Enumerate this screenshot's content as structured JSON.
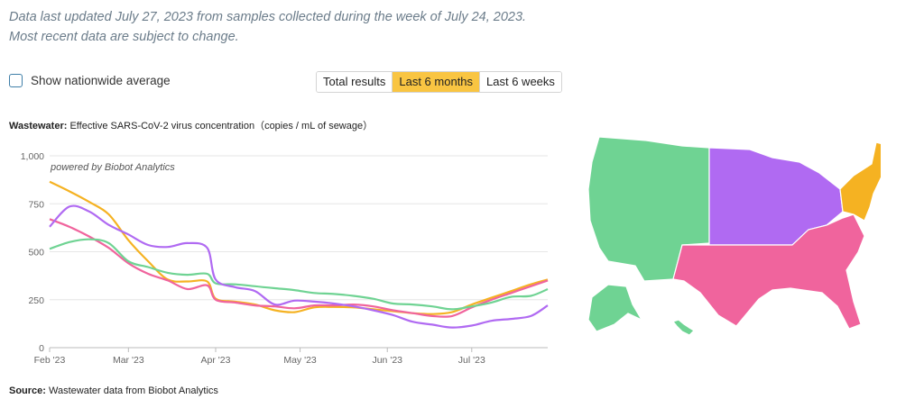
{
  "note": {
    "line1": "Data last updated July 27, 2023 from samples collected during the week of July 24, 2023.",
    "line2": "Most recent data are subject to change."
  },
  "toggle": {
    "label": "Show nationwide average",
    "checked": false
  },
  "range_tabs": [
    {
      "label": "Total results",
      "active": false
    },
    {
      "label": "Last 6 months",
      "active": true
    },
    {
      "label": "Last 6 weeks",
      "active": false
    }
  ],
  "chart_title": {
    "prefix": "Wastewater:",
    "text": "Effective SARS-CoV-2 virus concentration（copies / mL of sewage）"
  },
  "source": {
    "prefix": "Source:",
    "text": "Wastewater data from Biobot Analytics"
  },
  "chart_data": {
    "type": "line",
    "title": "Wastewater: Effective SARS-CoV-2 virus concentration（copies / mL of sewage）",
    "credit": "powered by Biobot Analytics",
    "x_ticks": [
      "Feb '23",
      "Mar '23",
      "Apr '23",
      "May '23",
      "Jun '23",
      "Jul '23"
    ],
    "x_tick_dates": [
      "2023-02-01",
      "2023-03-01",
      "2023-04-01",
      "2023-05-01",
      "2023-06-01",
      "2023-07-01"
    ],
    "x_range": [
      "2023-02-01",
      "2023-07-28"
    ],
    "y_ticks": [
      "0",
      "250",
      "500",
      "750",
      "1,000"
    ],
    "ylim": [
      0,
      1000
    ],
    "grid": "horizontal",
    "series": [
      {
        "color": "#f5b222",
        "points": [
          [
            "2023-02-01",
            865
          ],
          [
            "2023-02-08",
            815
          ],
          [
            "2023-02-15",
            760
          ],
          [
            "2023-02-22",
            695
          ],
          [
            "2023-03-01",
            560
          ],
          [
            "2023-03-08",
            450
          ],
          [
            "2023-03-15",
            355
          ],
          [
            "2023-03-22",
            345
          ],
          [
            "2023-03-29",
            345
          ],
          [
            "2023-04-01",
            255
          ],
          [
            "2023-04-08",
            240
          ],
          [
            "2023-04-15",
            225
          ],
          [
            "2023-04-22",
            195
          ],
          [
            "2023-04-29",
            185
          ],
          [
            "2023-05-06",
            210
          ],
          [
            "2023-05-13",
            212
          ],
          [
            "2023-05-20",
            210
          ],
          [
            "2023-05-27",
            200
          ],
          [
            "2023-06-03",
            190
          ],
          [
            "2023-06-10",
            180
          ],
          [
            "2023-06-17",
            175
          ],
          [
            "2023-06-24",
            185
          ],
          [
            "2023-07-01",
            225
          ],
          [
            "2023-07-08",
            260
          ],
          [
            "2023-07-15",
            295
          ],
          [
            "2023-07-22",
            330
          ],
          [
            "2023-07-28",
            355
          ]
        ]
      },
      {
        "color": "#f0649d",
        "points": [
          [
            "2023-02-01",
            670
          ],
          [
            "2023-02-08",
            630
          ],
          [
            "2023-02-15",
            580
          ],
          [
            "2023-02-22",
            520
          ],
          [
            "2023-03-01",
            440
          ],
          [
            "2023-03-08",
            385
          ],
          [
            "2023-03-15",
            350
          ],
          [
            "2023-03-22",
            305
          ],
          [
            "2023-03-29",
            325
          ],
          [
            "2023-04-01",
            250
          ],
          [
            "2023-04-08",
            235
          ],
          [
            "2023-04-15",
            220
          ],
          [
            "2023-04-22",
            215
          ],
          [
            "2023-04-29",
            205
          ],
          [
            "2023-05-06",
            220
          ],
          [
            "2023-05-13",
            220
          ],
          [
            "2023-05-20",
            225
          ],
          [
            "2023-05-27",
            215
          ],
          [
            "2023-06-03",
            195
          ],
          [
            "2023-06-10",
            180
          ],
          [
            "2023-06-17",
            165
          ],
          [
            "2023-06-24",
            165
          ],
          [
            "2023-07-01",
            210
          ],
          [
            "2023-07-08",
            250
          ],
          [
            "2023-07-15",
            285
          ],
          [
            "2023-07-22",
            320
          ],
          [
            "2023-07-28",
            350
          ]
        ]
      },
      {
        "color": "#6fd393",
        "points": [
          [
            "2023-02-01",
            515
          ],
          [
            "2023-02-08",
            550
          ],
          [
            "2023-02-15",
            565
          ],
          [
            "2023-02-22",
            545
          ],
          [
            "2023-03-01",
            450
          ],
          [
            "2023-03-08",
            420
          ],
          [
            "2023-03-15",
            390
          ],
          [
            "2023-03-22",
            380
          ],
          [
            "2023-03-29",
            385
          ],
          [
            "2023-04-01",
            335
          ],
          [
            "2023-04-08",
            330
          ],
          [
            "2023-04-15",
            320
          ],
          [
            "2023-04-22",
            310
          ],
          [
            "2023-04-29",
            300
          ],
          [
            "2023-05-06",
            285
          ],
          [
            "2023-05-13",
            280
          ],
          [
            "2023-05-20",
            270
          ],
          [
            "2023-05-27",
            255
          ],
          [
            "2023-06-03",
            230
          ],
          [
            "2023-06-10",
            225
          ],
          [
            "2023-06-17",
            215
          ],
          [
            "2023-06-24",
            200
          ],
          [
            "2023-07-01",
            215
          ],
          [
            "2023-07-08",
            235
          ],
          [
            "2023-07-15",
            265
          ],
          [
            "2023-07-22",
            270
          ],
          [
            "2023-07-28",
            305
          ]
        ]
      },
      {
        "color": "#b06af2",
        "points": [
          [
            "2023-02-01",
            630
          ],
          [
            "2023-02-08",
            735
          ],
          [
            "2023-02-15",
            710
          ],
          [
            "2023-02-22",
            640
          ],
          [
            "2023-03-01",
            590
          ],
          [
            "2023-03-08",
            535
          ],
          [
            "2023-03-15",
            525
          ],
          [
            "2023-03-22",
            545
          ],
          [
            "2023-03-29",
            520
          ],
          [
            "2023-04-01",
            355
          ],
          [
            "2023-04-08",
            315
          ],
          [
            "2023-04-15",
            295
          ],
          [
            "2023-04-22",
            225
          ],
          [
            "2023-04-29",
            245
          ],
          [
            "2023-05-06",
            240
          ],
          [
            "2023-05-13",
            230
          ],
          [
            "2023-05-20",
            215
          ],
          [
            "2023-05-27",
            195
          ],
          [
            "2023-06-03",
            170
          ],
          [
            "2023-06-10",
            135
          ],
          [
            "2023-06-17",
            120
          ],
          [
            "2023-06-24",
            105
          ],
          [
            "2023-07-01",
            115
          ],
          [
            "2023-07-08",
            140
          ],
          [
            "2023-07-15",
            150
          ],
          [
            "2023-07-22",
            165
          ],
          [
            "2023-07-28",
            220
          ]
        ]
      }
    ]
  },
  "map": {
    "colors": {
      "west": "#6fd393",
      "midwest": "#b06af2",
      "south": "#f0649d",
      "northeast": "#f5b222"
    }
  }
}
